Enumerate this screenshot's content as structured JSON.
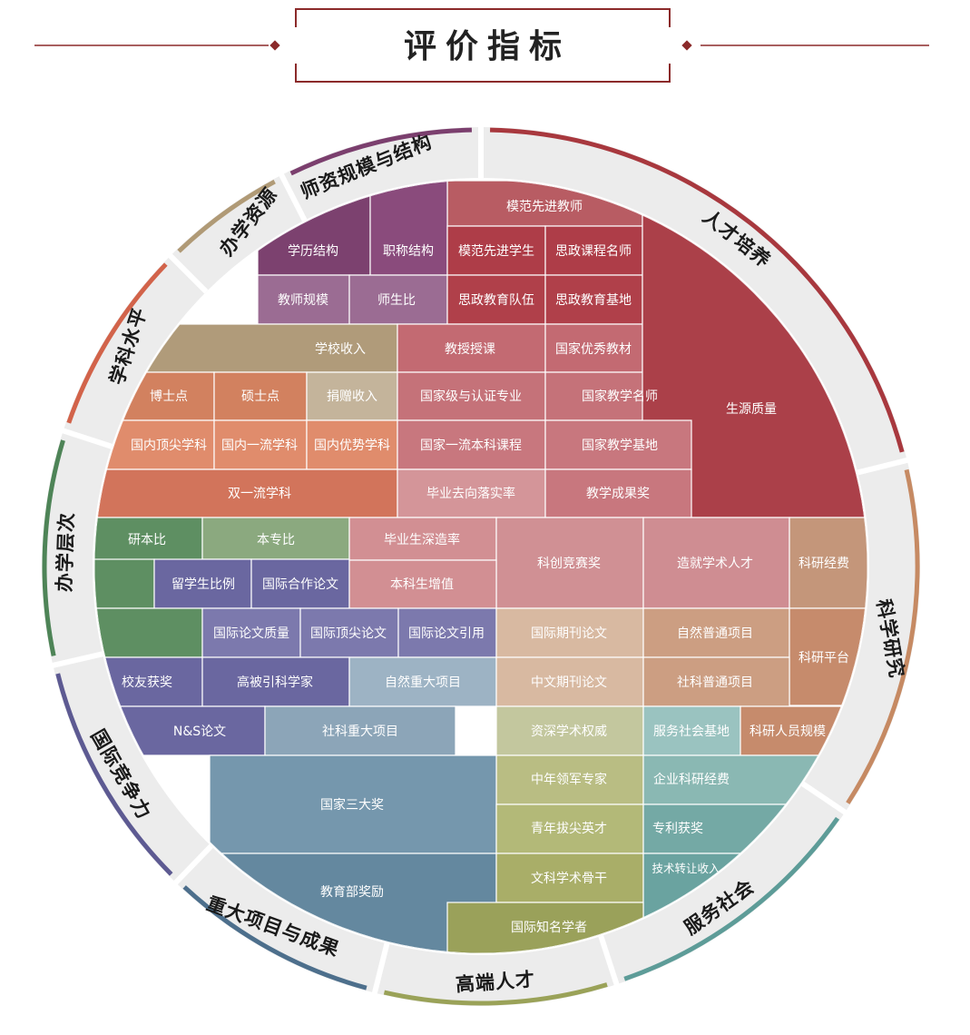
{
  "title": "评价指标",
  "colors": {
    "frame": "#8b2a2a",
    "ring_bg": "#ececec"
  },
  "categories": [
    {
      "label": "人才培养",
      "color": "#a8383e"
    },
    {
      "label": "科学研究",
      "color": "#c68a63"
    },
    {
      "label": "服务社会",
      "color": "#5d9c98"
    },
    {
      "label": "高端人才",
      "color": "#9aa258"
    },
    {
      "label": "重大项目与成果",
      "color": "#4d6f8c"
    },
    {
      "label": "国际竞争力",
      "color": "#5d5a92"
    },
    {
      "label": "办学层次",
      "color": "#4e8457"
    },
    {
      "label": "学科水平",
      "color": "#d2634a"
    },
    {
      "label": "办学资源",
      "color": "#b09a76"
    },
    {
      "label": "师资规模与结构",
      "color": "#7b3f6e"
    }
  ],
  "cells": [
    {
      "label": "模范先进教师"
    },
    {
      "label": "学历结构"
    },
    {
      "label": "职称结构"
    },
    {
      "label": "模范先进学生"
    },
    {
      "label": "思政课程名师"
    },
    {
      "label": "教师规模"
    },
    {
      "label": "师生比"
    },
    {
      "label": "思政教育队伍"
    },
    {
      "label": "思政教育基地"
    },
    {
      "label": "学校收入"
    },
    {
      "label": "教授授课"
    },
    {
      "label": "国家优秀教材"
    },
    {
      "label": "博士点"
    },
    {
      "label": "硕士点"
    },
    {
      "label": "捐赠收入"
    },
    {
      "label": "国家级与认证专业"
    },
    {
      "label": "国家教学名师"
    },
    {
      "label": "生源质量"
    },
    {
      "label": "国内顶尖学科"
    },
    {
      "label": "国内一流学科"
    },
    {
      "label": "国内优势学科"
    },
    {
      "label": "国家一流本科课程"
    },
    {
      "label": "国家教学基地"
    },
    {
      "label": "双一流学科"
    },
    {
      "label": "毕业去向落实率"
    },
    {
      "label": "教学成果奖"
    },
    {
      "label": "研本比"
    },
    {
      "label": "本专比"
    },
    {
      "label": "毕业生深造率"
    },
    {
      "label": "科创竞赛奖"
    },
    {
      "label": "造就学术人才"
    },
    {
      "label": "科研经费"
    },
    {
      "label": "留学生比例"
    },
    {
      "label": "国际合作论文"
    },
    {
      "label": "本科生增值"
    },
    {
      "label": "国际论文质量"
    },
    {
      "label": "国际顶尖论文"
    },
    {
      "label": "国际论文引用"
    },
    {
      "label": "国际期刊论文"
    },
    {
      "label": "自然普通项目"
    },
    {
      "label": "科研平台"
    },
    {
      "label": "校友获奖"
    },
    {
      "label": "高被引科学家"
    },
    {
      "label": "自然重大项目"
    },
    {
      "label": "中文期刊论文"
    },
    {
      "label": "社科普通项目"
    },
    {
      "label": "N&S论文"
    },
    {
      "label": "社科重大项目"
    },
    {
      "label": "资深学术权威"
    },
    {
      "label": "服务社会基地"
    },
    {
      "label": "科研人员规模"
    },
    {
      "label": "中年领军专家"
    },
    {
      "label": "企业科研经费"
    },
    {
      "label": "国家三大奖"
    },
    {
      "label": "青年拔尖英才"
    },
    {
      "label": "专利获奖"
    },
    {
      "label": "教育部奖励"
    },
    {
      "label": "文科学术骨干"
    },
    {
      "label": "技术转让收入"
    },
    {
      "label": "国际知名学者"
    }
  ]
}
